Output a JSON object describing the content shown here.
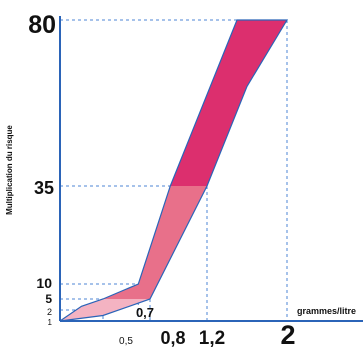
{
  "chart_data": {
    "type": "area",
    "title": "",
    "xlabel": "grammes/litre",
    "ylabel": "Multiplication du risque",
    "y_ticks": [
      "1",
      "2",
      "5",
      "10",
      "35",
      "80"
    ],
    "x_ticks": [
      "0,5",
      "0,7",
      "0,8",
      "1,2",
      "2"
    ],
    "band": {
      "lower_edge": [
        {
          "x": 0.2,
          "y": 1
        },
        {
          "x": 0.5,
          "y": 1.5
        },
        {
          "x": 0.7,
          "y": 5
        },
        {
          "x": 1.2,
          "y": 35
        },
        {
          "x": 1.6,
          "y": 62
        },
        {
          "x": 2.0,
          "y": 80
        }
      ],
      "upper_edge": [
        {
          "x": 0.2,
          "y": 1
        },
        {
          "x": 0.35,
          "y": 3
        },
        {
          "x": 0.5,
          "y": 5
        },
        {
          "x": 0.65,
          "y": 10
        },
        {
          "x": 0.9,
          "y": 35
        },
        {
          "x": 1.5,
          "y": 80
        }
      ]
    },
    "colors": {
      "dark": "#dc2f6e",
      "mid": "#e8708a",
      "light": "#f4b3c2",
      "outline": "#2b64b8",
      "guide": "#4e86d4",
      "axis": "#2b64b8"
    },
    "guides": [
      {
        "y": 80,
        "x": 2.0
      },
      {
        "y": 35,
        "x": 1.2
      },
      {
        "y": 10,
        "x": 0.65
      },
      {
        "y": 5,
        "x": 0.7
      },
      {
        "y": 2,
        "x": 0.5
      }
    ]
  }
}
